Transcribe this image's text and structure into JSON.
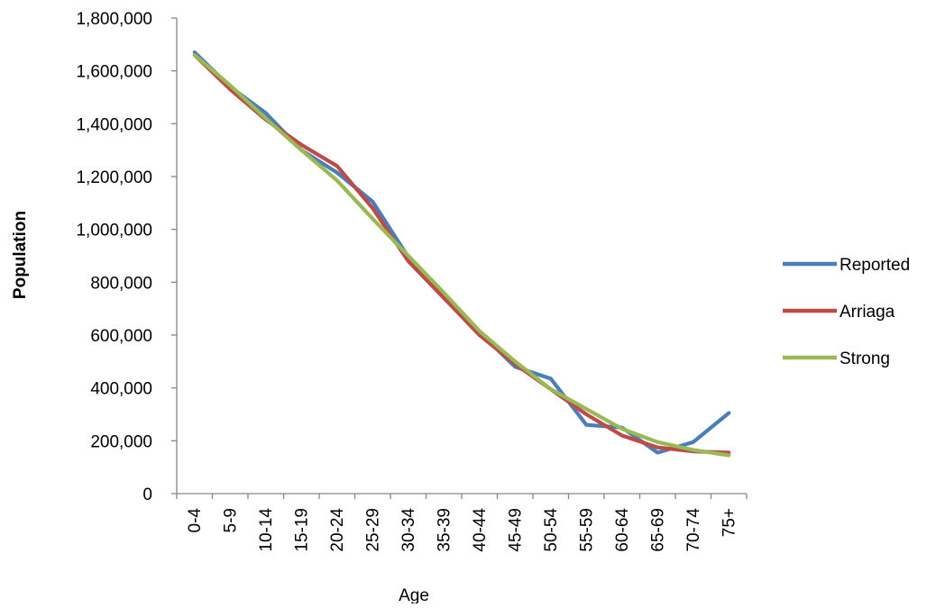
{
  "chart_data": {
    "type": "line",
    "title": "",
    "xlabel": "Age",
    "ylabel": "Population",
    "categories": [
      "0-4",
      "5-9",
      "10-14",
      "15-19",
      "20-24",
      "25-29",
      "30-34",
      "35-39",
      "40-44",
      "45-49",
      "50-54",
      "55-59",
      "60-64",
      "65-69",
      "70-74",
      "75+"
    ],
    "ylim": [
      0,
      1800000
    ],
    "yticks": [
      0,
      200000,
      400000,
      600000,
      800000,
      1000000,
      1200000,
      1400000,
      1600000,
      1800000
    ],
    "ytick_labels": [
      "0",
      "200,000",
      "400,000",
      "600,000",
      "800,000",
      "1,000,000",
      "1,200,000",
      "1,400,000",
      "1,600,000",
      "1,800,000"
    ],
    "grid": false,
    "legend_position": "right",
    "series": [
      {
        "name": "Reported",
        "color": "#4a7ebb",
        "values": [
          1670000,
          1540000,
          1440000,
          1300000,
          1215000,
          1105000,
          895000,
          755000,
          610000,
          480000,
          435000,
          260000,
          250000,
          155000,
          195000,
          305000
        ]
      },
      {
        "name": "Arriaga",
        "color": "#be4b48",
        "values": [
          1660000,
          1530000,
          1415000,
          1320000,
          1240000,
          1080000,
          880000,
          740000,
          600000,
          490000,
          395000,
          300000,
          220000,
          175000,
          160000,
          155000
        ]
      },
      {
        "name": "Strong",
        "color": "#98b954",
        "values": [
          1660000,
          1545000,
          1420000,
          1300000,
          1185000,
          1040000,
          900000,
          760000,
          615000,
          500000,
          395000,
          320000,
          245000,
          195000,
          165000,
          145000
        ]
      }
    ]
  }
}
